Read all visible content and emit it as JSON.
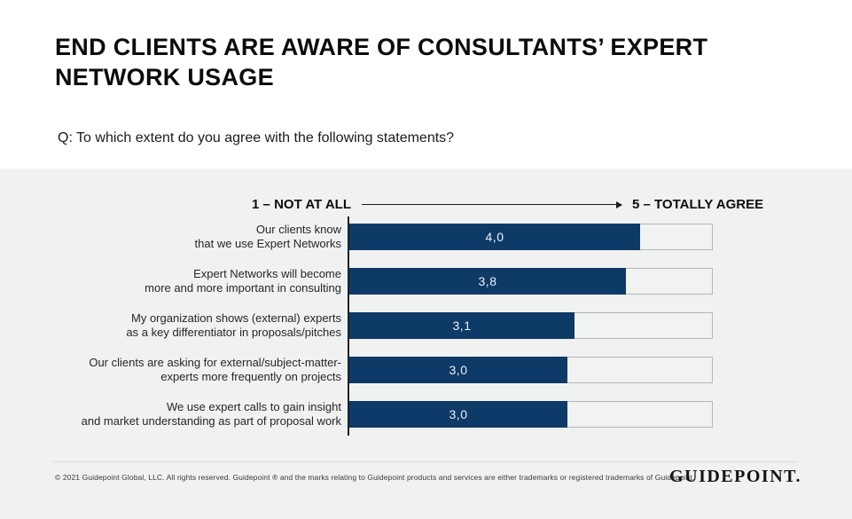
{
  "header": {
    "title": "END CLIENTS ARE AWARE OF CONSULTANTS’ EXPERT\nNETWORK USAGE",
    "question": "Q: To which extent do you agree with the following statements?"
  },
  "chart_data": {
    "type": "bar",
    "orientation": "horizontal",
    "title": "END CLIENTS ARE AWARE OF CONSULTANTS’ EXPERT NETWORK USAGE",
    "subtitle": "Q: To which extent do you agree with the following statements?",
    "scale_min_label": "1 – NOT AT ALL",
    "scale_max_label": "5 – TOTALLY AGREE",
    "axis_range": [
      0,
      5
    ],
    "grid": false,
    "legend": false,
    "categories": [
      "Our clients know\nthat we use Expert Networks",
      "Expert Networks will become\nmore and more important in consulting",
      "My organization shows (external) experts\nas a key differentiator in proposals/pitches",
      "Our clients are asking for external/subject-matter-\nexperts more frequently on projects",
      "We use expert calls to gain insight\nand market understanding as part of proposal work"
    ],
    "values": [
      4.0,
      3.8,
      3.1,
      3.0,
      3.0
    ],
    "value_labels": [
      "4,0",
      "3,8",
      "3,1",
      "3,0",
      "3,0"
    ],
    "colors": {
      "bar": "#0d3a66",
      "track": "#f1f2f2",
      "track_border": "#b4b6b8",
      "value_text": "#eef1f5",
      "section_background": "#f0f1f1",
      "axis": "#202020"
    }
  },
  "footer": {
    "copyright": "© 2021 Guidepoint Global, LLC. All rights reserved. Guidepoint ® and the marks relating to Guidepoint products and services are either trademarks or registered trademarks of Guidepoint.",
    "logo": "GUIDEPOINT."
  }
}
